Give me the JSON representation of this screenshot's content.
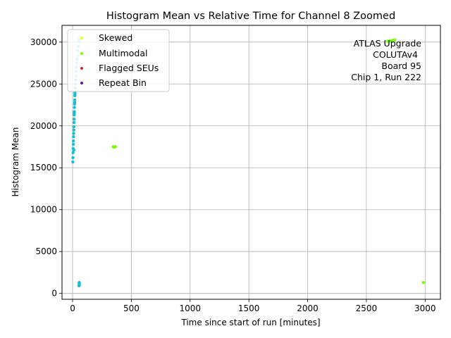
{
  "chart_data": {
    "type": "scatter",
    "title": "Histogram Mean vs Relative Time for Channel 8 Zoomed",
    "xlabel": "Time since start of run [minutes]",
    "ylabel": "Histogram Mean",
    "xlim": [
      -90,
      3130
    ],
    "ylim": [
      -700,
      32000
    ],
    "xticks": [
      0,
      500,
      1000,
      1500,
      2000,
      2500,
      3000
    ],
    "yticks": [
      0,
      5000,
      10000,
      15000,
      20000,
      25000,
      30000
    ],
    "xtick_labels": [
      "0",
      "500",
      "1000",
      "1500",
      "2000",
      "2500",
      "3000"
    ],
    "ytick_labels": [
      "0",
      "5000",
      "10000",
      "15000",
      "20000",
      "25000",
      "30000"
    ],
    "grid": true,
    "legend_position": "top-left",
    "annotation": [
      "ATLAS Upgrade",
      "COLUTAv4",
      "Board 95",
      "Chip 1, Run 222"
    ],
    "series": [
      {
        "color": "#17becf",
        "points": [
          [
            2,
            15700
          ],
          [
            3,
            16200
          ],
          [
            4,
            16800
          ],
          [
            5,
            17300
          ],
          [
            6,
            17800
          ],
          [
            7,
            18200
          ],
          [
            8,
            18700
          ],
          [
            9,
            19100
          ],
          [
            10,
            19500
          ],
          [
            11,
            19900
          ],
          [
            12,
            20400
          ],
          [
            13,
            20800
          ],
          [
            14,
            21300
          ],
          [
            15,
            21700
          ],
          [
            16,
            22200
          ],
          [
            17,
            22600
          ],
          [
            18,
            23100
          ],
          [
            19,
            23600
          ],
          [
            20,
            24000
          ],
          [
            22,
            24500
          ],
          [
            24,
            25000
          ],
          [
            26,
            25500
          ],
          [
            28,
            26000
          ],
          [
            30,
            26500
          ],
          [
            32,
            27000
          ],
          [
            35,
            27500
          ],
          [
            38,
            28000
          ],
          [
            41,
            28500
          ],
          [
            44,
            29000
          ],
          [
            48,
            29500
          ],
          [
            52,
            30000
          ],
          [
            56,
            30400
          ],
          [
            10,
            17100
          ],
          [
            14,
            21500
          ],
          [
            18,
            22800
          ],
          [
            20,
            23800
          ],
          [
            55,
            900
          ],
          [
            56,
            1100
          ],
          [
            57,
            1300
          ],
          [
            58,
            1000
          ],
          [
            57,
            1200
          ]
        ]
      },
      {
        "color": "#d0f0f0",
        "points": [
          [
            30,
            26200
          ],
          [
            36,
            27300
          ],
          [
            42,
            28600
          ],
          [
            50,
            29800
          ],
          [
            58,
            30600
          ],
          [
            62,
            30700
          ]
        ]
      },
      {
        "name": "Skewed",
        "color": "#f5f528",
        "points": []
      },
      {
        "name": "Multimodal",
        "color": "#7cfc00",
        "points": [
          [
            345,
            17500
          ],
          [
            355,
            17450
          ],
          [
            365,
            17500
          ],
          [
            2680,
            30100
          ],
          [
            2700,
            30150
          ],
          [
            2720,
            30200
          ],
          [
            2740,
            30250
          ],
          [
            2985,
            1300
          ]
        ]
      },
      {
        "name": "Flagged SEUs",
        "color": "#d62728",
        "points": []
      },
      {
        "name": "Repeat Bin",
        "color": "#6a1b9a",
        "points": []
      }
    ]
  }
}
